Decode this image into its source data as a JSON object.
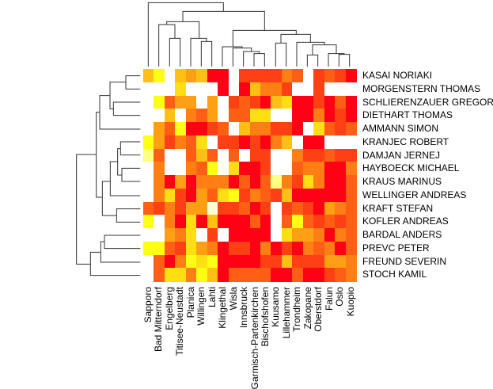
{
  "chart_data": {
    "type": "heatmap",
    "title": "",
    "xlabel": "",
    "ylabel": "",
    "columns": [
      "Sapporo",
      "Bad Mitterndorf",
      "Engelberg",
      "Titisee-Neustadt",
      "Planica",
      "Willingen",
      "Lahti",
      "Klingethal",
      "Wisla",
      "Innsbruck",
      "Garmisch-Partenkirchen",
      "Bischofshofen",
      "Kuusamo",
      "Lillehammer",
      "Trondheim",
      "Zakopane",
      "Oberstdorf",
      "Falun",
      "Oslo",
      "Kuopio"
    ],
    "rows": [
      "KASAI NORIAKI",
      "MORGENSTERN THOMAS",
      "SCHLIERENZAUER GREGOR",
      "DIETHART THOMAS",
      "AMMANN SIMON",
      "KRANJEC ROBERT",
      "DAMJAN JERNEJ",
      "HAYBOECK MICHAEL",
      "KRAUS MARINUS",
      "WELLINGER ANDREAS",
      "KRAFT STEFAN",
      "KOFLER ANDREAS",
      "BARDAL ANDERS",
      "PREVC PETER",
      "FREUND SEVERIN",
      "STOCH KAMIL"
    ],
    "palette": [
      "#FFFFFF",
      "#FFFF80",
      "#FFFF14",
      "#FFDF14",
      "#FFBF14",
      "#FF9F14",
      "#FF7F14",
      "#FF5F14",
      "#FF3F14",
      "#FF0014",
      "#FFFFD5"
    ],
    "palette_note": "cell values are color levels; 0 = missing (white), 1-9 light yellow to red, 10 = cream",
    "values": [
      [
        4,
        2,
        0,
        4,
        5,
        4,
        9,
        9,
        0,
        8,
        8,
        8,
        8,
        6,
        7,
        0,
        8,
        7,
        8,
        9
      ],
      [
        0,
        0,
        0,
        3,
        0,
        0,
        0,
        9,
        0,
        9,
        4,
        6,
        6,
        8,
        0,
        0,
        8,
        0,
        0,
        0
      ],
      [
        0,
        2,
        7,
        5,
        5,
        0,
        5,
        0,
        8,
        7,
        8,
        9,
        4,
        3,
        9,
        9,
        8,
        9,
        7,
        9
      ],
      [
        0,
        0,
        4,
        0,
        6,
        7,
        5,
        0,
        7,
        7,
        3,
        3,
        0,
        0,
        9,
        9,
        6,
        9,
        8,
        9
      ],
      [
        0,
        5,
        7,
        2,
        9,
        9,
        8,
        7,
        0,
        4,
        6,
        6,
        8,
        8,
        9,
        0,
        3,
        7,
        8,
        7
      ],
      [
        2,
        5,
        8,
        6,
        7,
        3,
        0,
        8,
        8,
        9,
        8,
        9,
        6,
        4,
        0,
        9,
        9,
        0,
        0,
        0
      ],
      [
        1,
        7,
        0,
        0,
        7,
        4,
        7,
        0,
        7,
        0,
        8,
        8,
        0,
        0,
        6,
        8,
        8,
        7,
        8,
        8
      ],
      [
        0,
        6,
        0,
        0,
        6,
        7,
        2,
        0,
        3,
        9,
        9,
        8,
        0,
        0,
        7,
        6,
        6,
        9,
        9,
        6
      ],
      [
        0,
        6,
        9,
        5,
        9,
        6,
        6,
        6,
        9,
        7,
        9,
        7,
        1,
        6,
        8,
        3,
        6,
        9,
        9,
        7
      ],
      [
        0,
        6,
        3,
        8,
        9,
        5,
        7,
        3,
        2,
        8,
        6,
        7,
        8,
        4,
        9,
        9,
        9,
        9,
        9,
        7
      ],
      [
        7,
        8,
        6,
        8,
        5,
        5,
        10,
        8,
        8,
        7,
        9,
        8,
        0,
        8,
        7,
        8,
        9,
        5,
        6,
        7
      ],
      [
        2,
        0,
        6,
        9,
        3,
        9,
        4,
        9,
        9,
        9,
        7,
        9,
        0,
        7,
        2,
        7,
        8,
        7,
        8,
        7
      ],
      [
        0,
        0,
        5,
        6,
        3,
        0,
        8,
        0,
        9,
        9,
        9,
        9,
        0,
        3,
        5,
        5,
        6,
        9,
        6,
        7
      ],
      [
        2,
        2,
        7,
        8,
        3,
        5,
        6,
        9,
        8,
        8,
        9,
        6,
        9,
        8,
        9,
        6,
        7,
        6,
        9,
        7
      ],
      [
        0,
        7,
        9,
        6,
        2,
        3,
        2,
        9,
        9,
        9,
        9,
        8,
        8,
        4,
        8,
        8,
        8,
        5,
        5,
        6
      ],
      [
        0,
        7,
        3,
        3,
        6,
        2,
        4,
        9,
        7,
        7,
        7,
        7,
        9,
        9,
        7,
        9,
        9,
        8,
        7,
        6
      ]
    ],
    "dendrograms": [
      "rows",
      "columns"
    ],
    "legend": "none"
  }
}
